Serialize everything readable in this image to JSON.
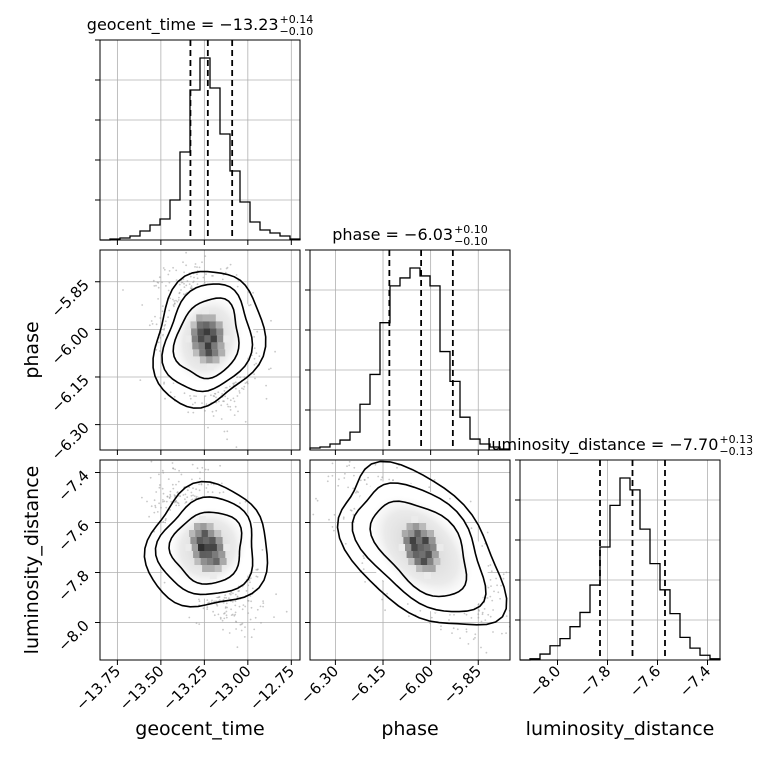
{
  "chart_data": {
    "type": "corner",
    "parameters": [
      "geocent_time",
      "phase",
      "luminosity_distance"
    ],
    "titles": [
      {
        "lead": "geocent_time = −13.23",
        "sup": "+0.14",
        "sub": "−0.10"
      },
      {
        "lead": "phase = −6.03",
        "sup": "+0.10",
        "sub": "−0.10"
      },
      {
        "lead": "luminosity_distance = −7.70",
        "sup": "+0.13",
        "sub": "−0.13"
      }
    ],
    "xlabels": [
      "geocent_time",
      "phase",
      "luminosity_distance"
    ],
    "ylabels": [
      "",
      "phase",
      "luminosity_distance"
    ],
    "ranges": [
      [
        -13.85,
        -12.7
      ],
      [
        -6.38,
        -5.75
      ],
      [
        -8.15,
        -7.35
      ]
    ],
    "ticks": {
      "geocent_time": [
        -13.75,
        -13.5,
        -13.25,
        -13.0,
        -12.75
      ],
      "phase": [
        -6.3,
        -6.15,
        -6.0,
        -5.85
      ],
      "luminosity_distance": [
        -8.0,
        -7.8,
        -7.6,
        -7.4
      ]
    },
    "tick_labels": {
      "geocent_time": [
        "−13.75",
        "−13.50",
        "−13.25",
        "−13.00",
        "−12.75"
      ],
      "phase": [
        "−6.30",
        "−6.15",
        "−6.00",
        "−5.85"
      ],
      "luminosity_distance": [
        "−8.0",
        "−7.8",
        "−7.6",
        "−7.4"
      ]
    },
    "quantiles": {
      "geocent_time": [
        -13.33,
        -13.23,
        -13.09
      ],
      "phase": [
        -6.13,
        -6.03,
        -5.93
      ],
      "luminosity_distance": [
        -7.83,
        -7.7,
        -7.57
      ]
    },
    "histograms": {
      "geocent_time": {
        "edges_start": -13.85,
        "bin_width": 0.0575,
        "counts": [
          0,
          1,
          2,
          4,
          9,
          15,
          21,
          40,
          88,
          150,
          182,
          152,
          106,
          69,
          38,
          18,
          10,
          7,
          4,
          1
        ]
      },
      "phase": {
        "edges_start": -6.38,
        "bin_width": 0.0315,
        "counts": [
          2,
          3,
          6,
          10,
          18,
          46,
          76,
          128,
          165,
          173,
          183,
          175,
          165,
          99,
          69,
          33,
          11,
          6,
          3,
          1
        ]
      },
      "luminosity_distance": {
        "edges_start": -8.15,
        "bin_width": 0.04,
        "counts": [
          0,
          1,
          5,
          12,
          18,
          28,
          40,
          63,
          95,
          130,
          153,
          143,
          110,
          81,
          59,
          39,
          19,
          10,
          4,
          1
        ]
      }
    },
    "grid": true,
    "colors": {
      "line": "#000000",
      "grid": "#b0b0b0",
      "points": "#9a9a9a"
    }
  }
}
